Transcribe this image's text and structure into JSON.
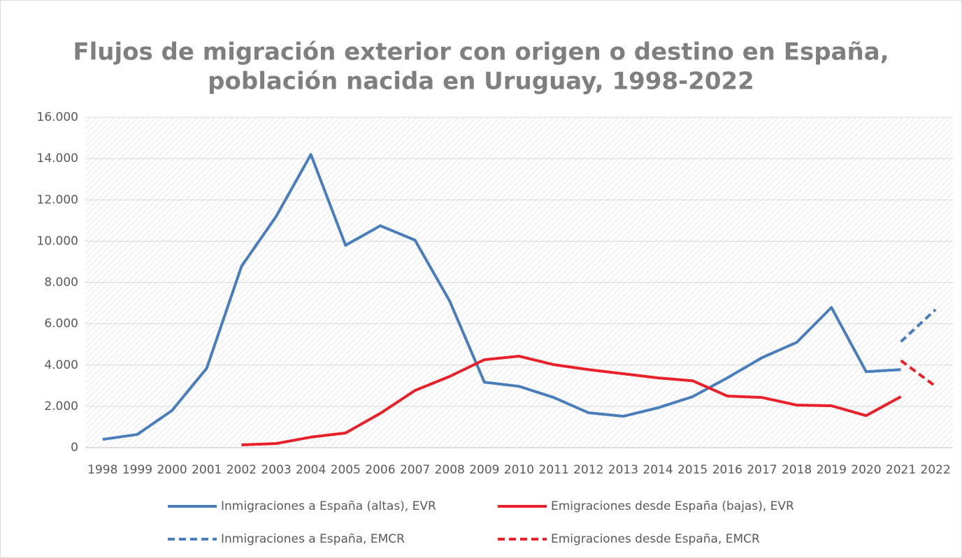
{
  "chart_data": {
    "type": "line",
    "title": [
      "Flujos de migración exterior con origen o destino en España,",
      "población nacida en Uruguay, 1998-2022"
    ],
    "categories": [
      "1998",
      "1999",
      "2000",
      "2001",
      "2002",
      "2003",
      "2004",
      "2005",
      "2006",
      "2007",
      "2008",
      "2009",
      "2010",
      "2011",
      "2012",
      "2013",
      "2014",
      "2015",
      "2016",
      "2017",
      "2018",
      "2019",
      "2020",
      "2021",
      "2022"
    ],
    "series": [
      {
        "name": "Inmigraciones a España (altas), EVR",
        "color": "#4a7ebb",
        "dash": false,
        "values": [
          400,
          640,
          1800,
          3850,
          8780,
          11200,
          14200,
          9800,
          10750,
          10050,
          7100,
          3170,
          2970,
          2430,
          1690,
          1520,
          1930,
          2470,
          3380,
          4360,
          5100,
          6790,
          3680,
          3780,
          null
        ]
      },
      {
        "name": "Emigraciones desde España (bajas), EVR",
        "color": "#e8202a",
        "dash": false,
        "values": [
          null,
          null,
          null,
          null,
          135,
          200,
          510,
          710,
          1660,
          2770,
          3450,
          4260,
          4430,
          4020,
          3780,
          3580,
          3380,
          3240,
          2500,
          2430,
          2060,
          2030,
          1550,
          2470,
          null
        ]
      },
      {
        "name": "Inmigraciones a España, EMCR",
        "color": "#4a7ebb",
        "dash": true,
        "values": [
          null,
          null,
          null,
          null,
          null,
          null,
          null,
          null,
          null,
          null,
          null,
          null,
          null,
          null,
          null,
          null,
          null,
          null,
          null,
          null,
          null,
          null,
          null,
          5130,
          6690
        ]
      },
      {
        "name": "Emigraciones desde España, EMCR",
        "color": "#e8202a",
        "dash": true,
        "values": [
          null,
          null,
          null,
          null,
          null,
          null,
          null,
          null,
          null,
          null,
          null,
          null,
          null,
          null,
          null,
          null,
          null,
          null,
          null,
          null,
          null,
          null,
          null,
          4220,
          2970
        ]
      }
    ],
    "ylim": [
      0,
      16000
    ],
    "yticks": [
      0,
      {
        "value": 2000,
        "label": "2.000"
      },
      {
        "value": 4000,
        "label": "4.000"
      },
      {
        "value": 6000,
        "label": "6.000"
      },
      {
        "value": 8000,
        "label": "8.000"
      },
      {
        "value": 10000,
        "label": "10.000"
      },
      {
        "value": 12000,
        "label": "12.000"
      },
      {
        "value": 14000,
        "label": "14.000"
      },
      {
        "value": 16000,
        "label": "16.000"
      }
    ],
    "grid": true,
    "legend": "bottom"
  }
}
